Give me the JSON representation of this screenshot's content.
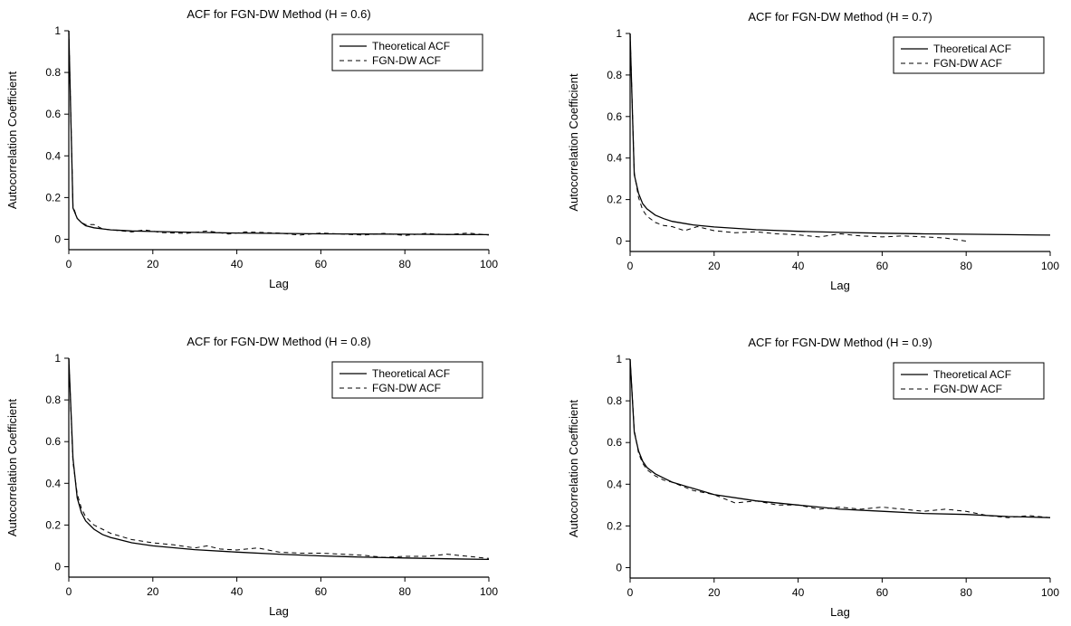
{
  "chart_data": [
    {
      "type": "line",
      "title": "ACF for FGN-DW Method (H = 0.6)",
      "xlabel": "Lag",
      "ylabel": "Autocorrelation Coefficient",
      "xlim": [
        0,
        100
      ],
      "ylim": [
        -0.05,
        1
      ],
      "xticks": [
        0,
        20,
        40,
        60,
        80,
        100
      ],
      "yticks": [
        0,
        0.2,
        0.4,
        0.6,
        0.8,
        1
      ],
      "ytick_labels": [
        "0",
        "0.2",
        "0.4",
        "0.6",
        "0.8",
        "1"
      ],
      "legend_position": "top-right",
      "grid": false,
      "series": [
        {
          "name": "Theoretical ACF",
          "style": "solid",
          "x": [
            0,
            1,
            2,
            3,
            4,
            6,
            8,
            10,
            15,
            20,
            30,
            40,
            50,
            60,
            70,
            80,
            90,
            100
          ],
          "y": [
            1.0,
            0.15,
            0.1,
            0.08,
            0.065,
            0.055,
            0.05,
            0.045,
            0.04,
            0.037,
            0.033,
            0.03,
            0.028,
            0.026,
            0.025,
            0.024,
            0.023,
            0.022
          ]
        },
        {
          "name": "FGN-DW ACF",
          "style": "dashed",
          "x": [
            0,
            1,
            2,
            3,
            4,
            6,
            8,
            10,
            15,
            18,
            22,
            28,
            33,
            38,
            42,
            50,
            55,
            60,
            65,
            70,
            75,
            80,
            85,
            90,
            95,
            100
          ],
          "y": [
            1.0,
            0.16,
            0.1,
            0.08,
            0.07,
            0.07,
            0.05,
            0.045,
            0.035,
            0.045,
            0.032,
            0.028,
            0.04,
            0.025,
            0.035,
            0.03,
            0.02,
            0.03,
            0.025,
            0.02,
            0.028,
            0.018,
            0.028,
            0.022,
            0.03,
            0.02
          ]
        }
      ]
    },
    {
      "type": "line",
      "title": "ACF for FGN-DW Method (H = 0.7)",
      "xlabel": "Lag",
      "ylabel": "Autocorrelation Coefficient",
      "xlim": [
        0,
        100
      ],
      "ylim": [
        -0.05,
        1
      ],
      "xticks": [
        0,
        20,
        40,
        60,
        80,
        100
      ],
      "yticks": [
        0,
        0.2,
        0.4,
        0.6,
        0.8,
        1
      ],
      "ytick_labels": [
        "0",
        "0.2",
        "0.4",
        "0.6",
        "0.8",
        "1"
      ],
      "legend_position": "top-right",
      "grid": false,
      "series": [
        {
          "name": "Theoretical ACF",
          "style": "solid",
          "x": [
            0,
            1,
            2,
            3,
            4,
            6,
            8,
            10,
            15,
            20,
            30,
            40,
            50,
            60,
            70,
            80,
            90,
            100
          ],
          "y": [
            1.0,
            0.32,
            0.23,
            0.18,
            0.155,
            0.125,
            0.108,
            0.095,
            0.078,
            0.068,
            0.055,
            0.047,
            0.042,
            0.038,
            0.035,
            0.033,
            0.031,
            0.029
          ]
        },
        {
          "name": "FGN-DW ACF",
          "style": "dashed",
          "x": [
            0,
            1,
            2,
            3,
            4,
            6,
            8,
            10,
            13,
            16,
            20,
            25,
            30,
            35,
            40,
            45,
            50,
            55,
            60,
            65,
            70,
            75,
            80
          ],
          "y": [
            1.0,
            0.33,
            0.21,
            0.15,
            0.12,
            0.09,
            0.075,
            0.07,
            0.05,
            0.07,
            0.05,
            0.04,
            0.045,
            0.035,
            0.03,
            0.02,
            0.035,
            0.025,
            0.02,
            0.025,
            0.02,
            0.015,
            0.0
          ]
        }
      ]
    },
    {
      "type": "line",
      "title": "ACF for FGN-DW Method (H = 0.8)",
      "xlabel": "Lag",
      "ylabel": "Autocorrelation Coefficient",
      "xlim": [
        0,
        100
      ],
      "ylim": [
        -0.05,
        1
      ],
      "xticks": [
        0,
        20,
        40,
        60,
        80,
        100
      ],
      "yticks": [
        0,
        0.2,
        0.4,
        0.6,
        0.8,
        1
      ],
      "ytick_labels": [
        "0",
        "0.2",
        "0.4",
        "0.6",
        "0.8",
        "1"
      ],
      "legend_position": "top-right",
      "grid": false,
      "series": [
        {
          "name": "Theoretical ACF",
          "style": "solid",
          "x": [
            0,
            1,
            2,
            3,
            4,
            6,
            8,
            10,
            15,
            20,
            30,
            40,
            50,
            60,
            70,
            80,
            90,
            100
          ],
          "y": [
            1.0,
            0.52,
            0.33,
            0.26,
            0.22,
            0.18,
            0.155,
            0.14,
            0.115,
            0.1,
            0.082,
            0.07,
            0.06,
            0.052,
            0.046,
            0.042,
            0.038,
            0.035
          ]
        },
        {
          "name": "FGN-DW ACF",
          "style": "dashed",
          "x": [
            0,
            1,
            2,
            3,
            4,
            6,
            8,
            10,
            15,
            20,
            25,
            30,
            33,
            36,
            40,
            45,
            50,
            55,
            60,
            65,
            70,
            75,
            80,
            85,
            90,
            95,
            100
          ],
          "y": [
            1.0,
            0.5,
            0.35,
            0.28,
            0.24,
            0.2,
            0.18,
            0.16,
            0.13,
            0.115,
            0.105,
            0.09,
            0.1,
            0.085,
            0.08,
            0.09,
            0.07,
            0.065,
            0.065,
            0.06,
            0.055,
            0.045,
            0.05,
            0.05,
            0.06,
            0.05,
            0.04
          ]
        }
      ]
    },
    {
      "type": "line",
      "title": "ACF for FGN-DW Method (H = 0.9)",
      "xlabel": "Lag",
      "ylabel": "Autocorrelation Coefficient",
      "xlim": [
        0,
        100
      ],
      "ylim": [
        -0.05,
        1
      ],
      "xticks": [
        0,
        20,
        40,
        60,
        80,
        100
      ],
      "yticks": [
        0,
        0.2,
        0.4,
        0.6,
        0.8,
        1
      ],
      "ytick_labels": [
        "0",
        "0.2",
        "0.4",
        "0.6",
        "0.8",
        "1"
      ],
      "legend_position": "top-right",
      "grid": false,
      "series": [
        {
          "name": "Theoretical ACF",
          "style": "solid",
          "x": [
            0,
            1,
            2,
            3,
            4,
            6,
            8,
            10,
            15,
            20,
            30,
            40,
            50,
            60,
            70,
            80,
            90,
            100
          ],
          "y": [
            1.0,
            0.65,
            0.56,
            0.51,
            0.48,
            0.45,
            0.43,
            0.41,
            0.38,
            0.35,
            0.32,
            0.3,
            0.28,
            0.27,
            0.26,
            0.255,
            0.245,
            0.24
          ]
        },
        {
          "name": "FGN-DW ACF",
          "style": "dashed",
          "x": [
            0,
            1,
            2,
            3,
            4,
            6,
            8,
            10,
            15,
            20,
            25,
            30,
            35,
            40,
            45,
            50,
            55,
            60,
            65,
            70,
            75,
            80,
            85,
            90,
            95,
            100
          ],
          "y": [
            1.0,
            0.66,
            0.55,
            0.5,
            0.47,
            0.44,
            0.42,
            0.41,
            0.37,
            0.35,
            0.31,
            0.32,
            0.3,
            0.3,
            0.28,
            0.29,
            0.28,
            0.29,
            0.28,
            0.27,
            0.28,
            0.27,
            0.25,
            0.24,
            0.25,
            0.24
          ]
        }
      ]
    }
  ]
}
